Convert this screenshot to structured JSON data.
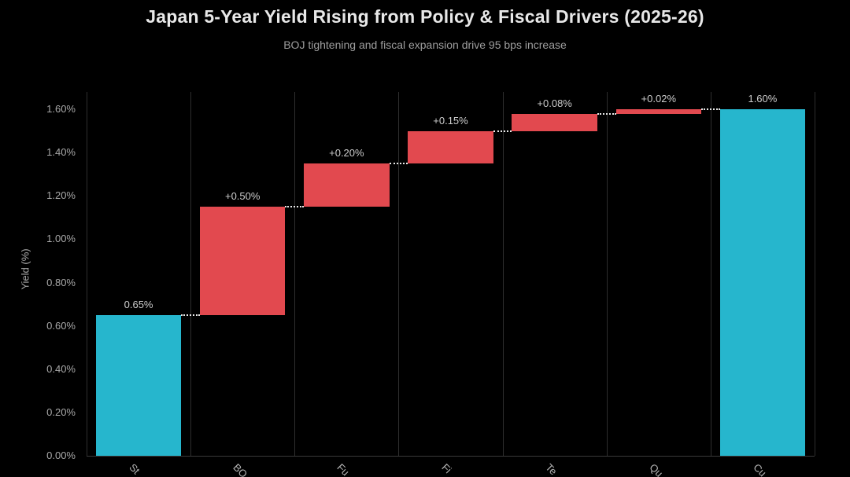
{
  "title": "Japan 5-Year Yield Rising from Policy & Fiscal Drivers (2025-26)",
  "subtitle": "BOJ tightening and fiscal expansion drive 95 bps increase",
  "chart_data": {
    "type": "bar",
    "subtype": "waterfall",
    "title": "Japan 5-Year Yield Rising from Policy & Fiscal Drivers (2025-26)",
    "subtitle": "BOJ tightening and fiscal expansion drive 95 bps increase",
    "ylabel": "Yield (%)",
    "ylim": [
      0,
      1.68
    ],
    "ytick_step": 0.2,
    "ytick_labels": [
      "0.00%",
      "0.20%",
      "0.40%",
      "0.60%",
      "0.80%",
      "1.00%",
      "1.20%",
      "1.40%",
      "1.60%"
    ],
    "grid": "vertical-only",
    "legend": "none",
    "categories_visible": [
      "St",
      "BO",
      "Fu",
      "Fi",
      "Te",
      "Qu",
      "Cu"
    ],
    "bars": [
      {
        "category": "St",
        "value_label": "0.65%",
        "start": 0,
        "end": 0.65,
        "kind": "total"
      },
      {
        "category": "BO",
        "value_label": "+0.50%",
        "start": 0.65,
        "end": 1.15,
        "kind": "increase"
      },
      {
        "category": "Fu",
        "value_label": "+0.20%",
        "start": 1.15,
        "end": 1.35,
        "kind": "increase"
      },
      {
        "category": "Fi",
        "value_label": "+0.15%",
        "start": 1.35,
        "end": 1.5,
        "kind": "increase"
      },
      {
        "category": "Te",
        "value_label": "+0.08%",
        "start": 1.5,
        "end": 1.58,
        "kind": "increase"
      },
      {
        "category": "Qu",
        "value_label": "+0.02%",
        "start": 1.58,
        "end": 1.6,
        "kind": "increase"
      },
      {
        "category": "Cu",
        "value_label": "1.60%",
        "start": 0,
        "end": 1.6,
        "kind": "total"
      }
    ],
    "colors": {
      "total": "#26b6cd",
      "increase": "#e2494f",
      "connector": "#e8e8e8",
      "grid": "#2e2e2e",
      "background": "#000000"
    }
  }
}
